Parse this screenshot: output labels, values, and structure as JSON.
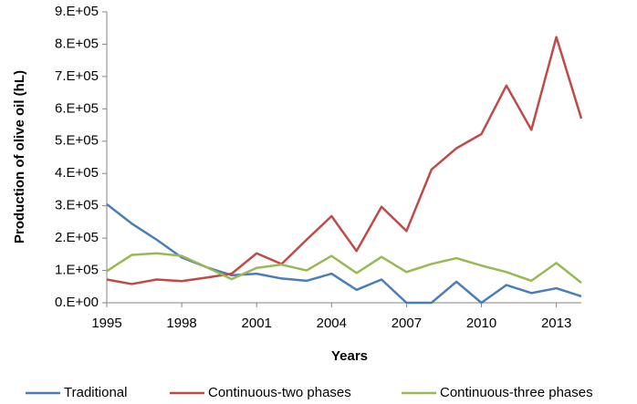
{
  "chart_data": {
    "type": "line",
    "xlabel": "Years",
    "ylabel": "Production of olive oil (hL)",
    "x": [
      1995,
      1996,
      1997,
      1998,
      1999,
      2000,
      2001,
      2002,
      2003,
      2004,
      2005,
      2006,
      2007,
      2008,
      2009,
      2010,
      2011,
      2012,
      2013,
      2014
    ],
    "series": [
      {
        "name": "Traditional",
        "color": "#4a7ebb",
        "values": [
          305000,
          245000,
          195000,
          140000,
          110000,
          85000,
          90000,
          75000,
          68000,
          90000,
          40000,
          72000,
          0,
          0,
          65000,
          0,
          55000,
          30000,
          45000,
          20000
        ]
      },
      {
        "name": "Continuous-two phases",
        "color": "#be4b48",
        "values": [
          72000,
          58000,
          72000,
          67000,
          78000,
          90000,
          153000,
          120000,
          195000,
          268000,
          160000,
          297000,
          222000,
          412000,
          478000,
          522000,
          672000,
          535000,
          822000,
          570000
        ]
      },
      {
        "name": "Continuous-three phases",
        "color": "#98b954",
        "values": [
          98000,
          148000,
          153000,
          145000,
          110000,
          73000,
          108000,
          118000,
          100000,
          145000,
          92000,
          142000,
          95000,
          120000,
          138000,
          115000,
          95000,
          68000,
          123000,
          62000
        ]
      }
    ],
    "xlim": [
      1995,
      2014
    ],
    "xticks": [
      1995,
      1998,
      2001,
      2004,
      2007,
      2010,
      2013
    ],
    "ylim": [
      0,
      900000
    ],
    "yticks": [
      {
        "value": 0,
        "label": "0.E+00"
      },
      {
        "value": 100000,
        "label": "1.E+05"
      },
      {
        "value": 200000,
        "label": "2.E+05"
      },
      {
        "value": 300000,
        "label": "3.E+05"
      },
      {
        "value": 400000,
        "label": "4.E+05"
      },
      {
        "value": 500000,
        "label": "5.E+05"
      },
      {
        "value": 600000,
        "label": "6.E+05"
      },
      {
        "value": 700000,
        "label": "7.E+05"
      },
      {
        "value": 800000,
        "label": "8.E+05"
      },
      {
        "value": 900000,
        "label": "9.E+05"
      }
    ],
    "legend": "bottom"
  }
}
